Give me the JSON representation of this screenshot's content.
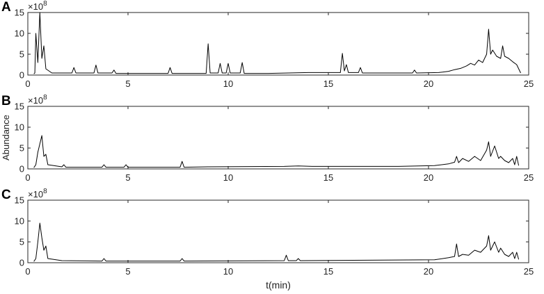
{
  "chart_data": [
    {
      "type": "line",
      "panel_label": "A",
      "y_scale_base": "×10",
      "y_scale_exponent": "8",
      "xlim": [
        0,
        25
      ],
      "ylim": [
        0,
        15
      ],
      "xticks": [
        0,
        5,
        10,
        15,
        20,
        25
      ],
      "yticks": [
        0,
        5,
        10,
        15
      ],
      "x": [
        0.3,
        0.35,
        0.4,
        0.5,
        0.6,
        0.7,
        0.8,
        0.9,
        1.2,
        2.2,
        2.3,
        2.4,
        3.3,
        3.4,
        3.5,
        4.2,
        4.3,
        4.4,
        7.0,
        7.1,
        7.2,
        8.9,
        9.0,
        9.1,
        9.5,
        9.6,
        9.7,
        9.9,
        10.0,
        10.1,
        10.6,
        10.7,
        10.8,
        12,
        13,
        14,
        15.6,
        15.7,
        15.8,
        15.9,
        16.0,
        16.5,
        16.6,
        16.7,
        19.2,
        19.3,
        19.4,
        20.5,
        21,
        21.3,
        21.6,
        21.9,
        22.1,
        22.3,
        22.5,
        22.7,
        22.9,
        23.0,
        23.1,
        23.2,
        23.4,
        23.6,
        23.7,
        23.8,
        24.0,
        24.2,
        24.4,
        24.5,
        24.6
      ],
      "series": [
        {
          "color": "#000000",
          "values": [
            0.3,
            0.5,
            10,
            3,
            15,
            4,
            7,
            1.5,
            0.5,
            0.5,
            1.8,
            0.5,
            0.5,
            2.4,
            0.5,
            0.5,
            1.2,
            0.4,
            0.4,
            1.8,
            0.4,
            0.4,
            7.5,
            0.5,
            0.5,
            2.8,
            0.5,
            0.5,
            2.8,
            0.5,
            0.5,
            3,
            0.4,
            0.4,
            0.5,
            0.6,
            0.6,
            5.2,
            1,
            2.5,
            0.6,
            0.6,
            1.8,
            0.5,
            0.5,
            1.2,
            0.5,
            0.6,
            0.9,
            1.3,
            1.6,
            2.2,
            2.8,
            2.4,
            3.6,
            3,
            5,
            11,
            5,
            6,
            4.5,
            4,
            7,
            4.5,
            4,
            3.2,
            2.5,
            1.5,
            0.5
          ]
        }
      ]
    },
    {
      "type": "line",
      "panel_label": "B",
      "y_scale_base": "×10",
      "y_scale_exponent": "8",
      "ylabel": "Abundance",
      "xlim": [
        0,
        25
      ],
      "ylim": [
        0,
        15
      ],
      "xticks": [
        0,
        5,
        10,
        15,
        20,
        25
      ],
      "yticks": [
        0,
        5,
        10,
        15
      ],
      "x": [
        0.3,
        0.4,
        0.5,
        0.6,
        0.7,
        0.8,
        0.9,
        1.0,
        1.7,
        1.8,
        1.9,
        3.7,
        3.8,
        3.9,
        4.8,
        4.9,
        5.0,
        7.6,
        7.7,
        7.8,
        9.0,
        12.8,
        13.5,
        14.2,
        18.5,
        20.3,
        21,
        21.3,
        21.4,
        21.5,
        21.7,
        22,
        22.3,
        22.6,
        22.9,
        23.0,
        23.1,
        23.3,
        23.5,
        23.6,
        23.8,
        24.0,
        24.2,
        24.3,
        24.4,
        24.5
      ],
      "series": [
        {
          "color": "#000000",
          "values": [
            0.3,
            1,
            4,
            6,
            8,
            3,
            3.5,
            1,
            0.5,
            1,
            0.4,
            0.4,
            1,
            0.4,
            0.4,
            1,
            0.4,
            0.4,
            1.8,
            0.4,
            0.5,
            0.6,
            0.7,
            0.6,
            0.6,
            0.8,
            1.2,
            1.6,
            3,
            1.5,
            2.5,
            1.8,
            3,
            2,
            4.5,
            6.5,
            3,
            5.5,
            2.5,
            3,
            2,
            1.5,
            2.5,
            1,
            3,
            0.8
          ]
        }
      ]
    },
    {
      "type": "line",
      "panel_label": "C",
      "y_scale_base": "×10",
      "y_scale_exponent": "8",
      "xlabel": "t(min)",
      "xlim": [
        0,
        25
      ],
      "ylim": [
        0,
        15
      ],
      "xticks": [
        0,
        5,
        10,
        15,
        20,
        25
      ],
      "yticks": [
        0,
        5,
        10,
        15
      ],
      "x": [
        0.3,
        0.4,
        0.5,
        0.6,
        0.7,
        0.8,
        0.9,
        1.0,
        1.7,
        3.7,
        3.8,
        3.9,
        7.6,
        7.7,
        7.8,
        12.8,
        12.9,
        13.0,
        13.4,
        13.5,
        13.6,
        20.3,
        21,
        21.3,
        21.4,
        21.5,
        21.7,
        22,
        22.3,
        22.6,
        22.9,
        23.0,
        23.1,
        23.3,
        23.5,
        23.6,
        23.8,
        24.0,
        24.2,
        24.3,
        24.4,
        24.5
      ],
      "series": [
        {
          "color": "#000000",
          "values": [
            0.3,
            1,
            5,
            9.5,
            6,
            3,
            4,
            1,
            0.5,
            0.4,
            1,
            0.4,
            0.4,
            1,
            0.4,
            0.5,
            1.8,
            0.5,
            0.5,
            1,
            0.5,
            0.7,
            1.2,
            1.5,
            4.5,
            1.5,
            2,
            1.8,
            3,
            2.5,
            4,
            6.5,
            3,
            5,
            2.5,
            3.5,
            2,
            1.5,
            2.5,
            1,
            2.5,
            0.8
          ]
        }
      ]
    }
  ]
}
